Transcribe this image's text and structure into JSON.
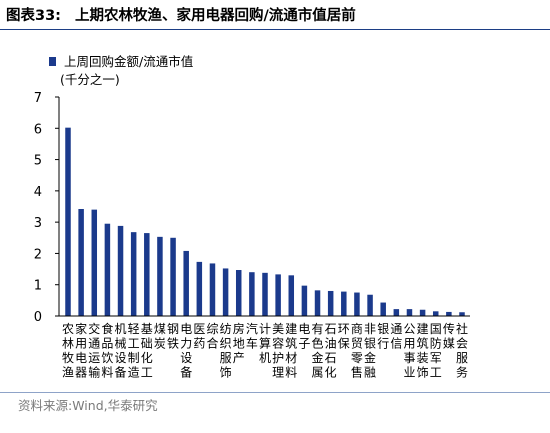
{
  "header": {
    "figure_number": "图表33:",
    "title": "上期农林牧渔、家用电器回购/流通市值居前"
  },
  "source": "资料来源:Wind,华泰研究",
  "colors": {
    "bar": "#1b3a8c",
    "rule": "#1c3e85"
  },
  "chart_data": {
    "type": "bar",
    "legend": {
      "entries": [
        "上周回购金额/流通市值"
      ],
      "placement": "top-left"
    },
    "unit_label": "(千分之一)",
    "ylim": [
      0,
      7
    ],
    "yticks": [
      0,
      1,
      2,
      3,
      4,
      5,
      6,
      7
    ],
    "grid": false,
    "categories": [
      "农林牧渔",
      "家用电器",
      "交通运输",
      "食品饮料",
      "机械设备",
      "轻工制造",
      "基础化工",
      "煤炭",
      "钢铁",
      "电力设备",
      "医药",
      "综合",
      "纺织服饰",
      "房地产",
      "汽车",
      "计算机",
      "美容护理",
      "建筑材料",
      "电子",
      "有色金属",
      "石油石化",
      "环保",
      "商贸零售",
      "非银金融",
      "银行",
      "通信",
      "公用事业",
      "建筑装饰",
      "国防军工",
      "传媒",
      "社会服务"
    ],
    "category_lines": [
      [
        "农",
        "林",
        "牧",
        "渔"
      ],
      [
        "家",
        "用",
        "电",
        "器"
      ],
      [
        "交",
        "通",
        "运",
        "输"
      ],
      [
        "食",
        "品",
        "饮",
        "料"
      ],
      [
        "机",
        "械",
        "设",
        "备"
      ],
      [
        "轻",
        "工",
        "制",
        "造"
      ],
      [
        "基",
        "础",
        "化",
        "工"
      ],
      [
        "煤",
        "炭"
      ],
      [
        "钢",
        "铁"
      ],
      [
        "电",
        "力",
        "设",
        "备"
      ],
      [
        "医",
        "药"
      ],
      [
        "综",
        "合"
      ],
      [
        "纺",
        "织",
        "服",
        "饰"
      ],
      [
        "房",
        "地",
        "产"
      ],
      [
        "汽",
        "车"
      ],
      [
        "计",
        "算",
        "机"
      ],
      [
        "美",
        "容",
        "护",
        "理"
      ],
      [
        "建",
        "筑",
        "材",
        "料"
      ],
      [
        "电",
        "子"
      ],
      [
        "有",
        "色",
        "金",
        "属"
      ],
      [
        "石",
        "油",
        "石",
        "化"
      ],
      [
        "环",
        "保"
      ],
      [
        "商",
        "贸",
        "零",
        "售"
      ],
      [
        "非",
        "银",
        "金",
        "融"
      ],
      [
        "银",
        "行"
      ],
      [
        "通",
        "信"
      ],
      [
        "公",
        "用",
        "事",
        "业"
      ],
      [
        "建",
        "筑",
        "装",
        "饰"
      ],
      [
        "国",
        "防",
        "军",
        "工"
      ],
      [
        "传",
        "媒"
      ],
      [
        "社",
        "会",
        "服",
        "务"
      ]
    ],
    "series": [
      {
        "name": "上周回购金额/流通市值",
        "values": [
          6.02,
          3.42,
          3.4,
          2.95,
          2.88,
          2.68,
          2.65,
          2.53,
          2.5,
          2.08,
          1.73,
          1.68,
          1.52,
          1.47,
          1.4,
          1.38,
          1.33,
          1.3,
          0.97,
          0.82,
          0.8,
          0.78,
          0.75,
          0.68,
          0.43,
          0.22,
          0.22,
          0.2,
          0.15,
          0.13,
          0.12
        ]
      }
    ]
  }
}
